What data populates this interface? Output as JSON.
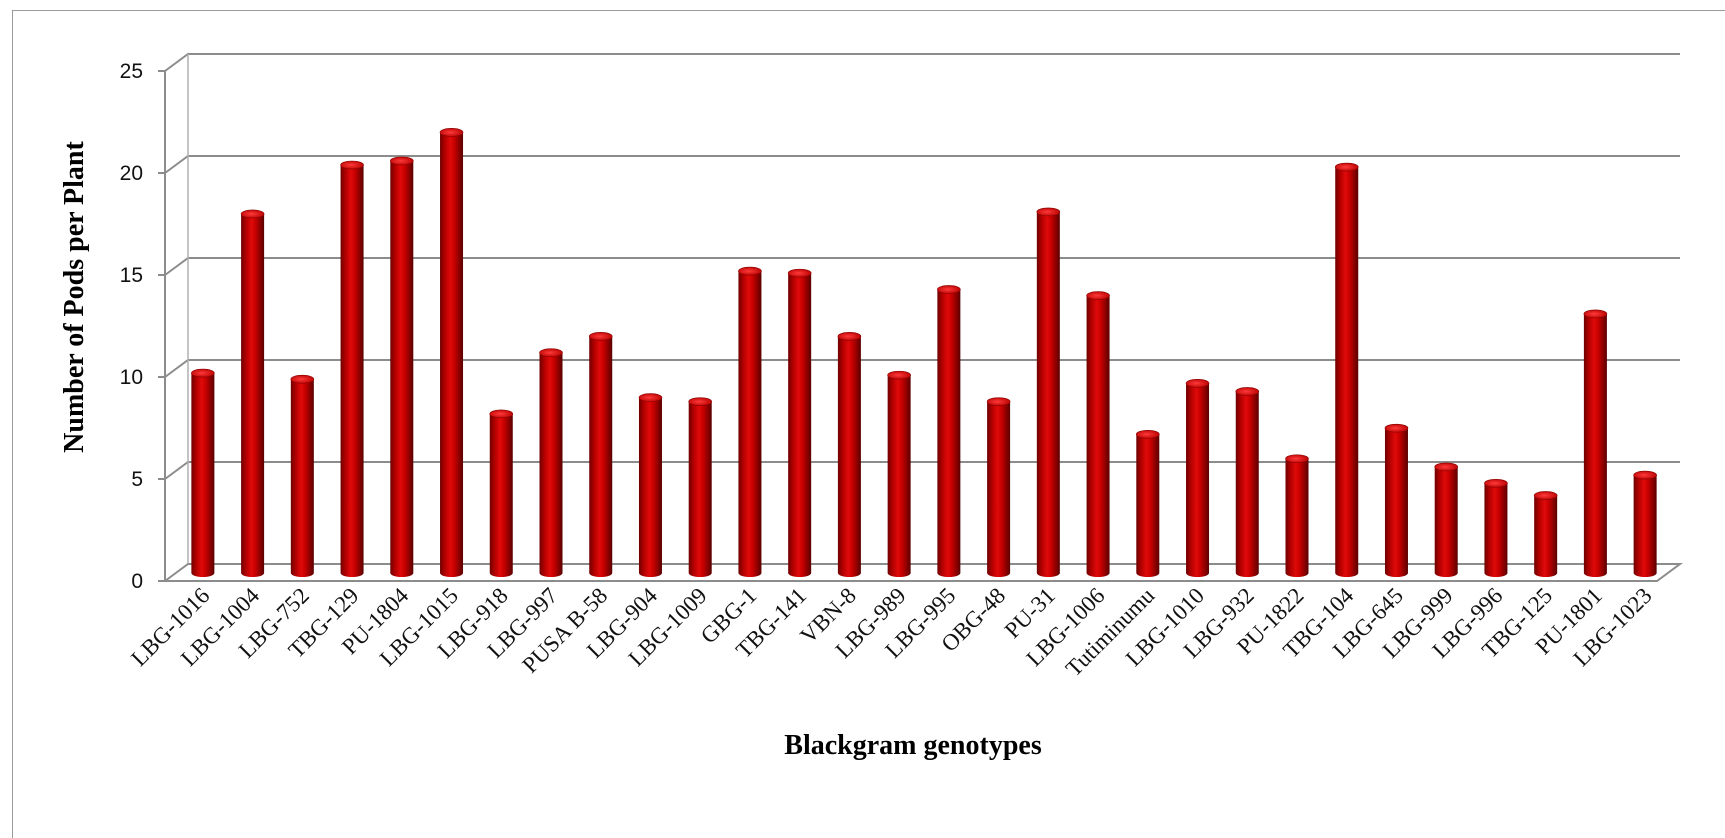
{
  "chart_data": {
    "type": "bar",
    "style": "3d-cylinder",
    "xlabel": "Blackgram genotypes",
    "ylabel": "Number of Pods per Plant",
    "ylim": [
      0,
      25
    ],
    "yticks": [
      0,
      5,
      10,
      15,
      20,
      25
    ],
    "grid": true,
    "legend": "none",
    "bar_color": "#c00000",
    "categories": [
      "LBG-1016",
      "LBG-1004",
      "LBG-752",
      "TBG-129",
      "PU-1804",
      "LBG-1015",
      "LBG-918",
      "LBG-997",
      "PUSA B-58",
      "LBG-904",
      "LBG-1009",
      "GBG-1",
      "TBG-141",
      "VBN-8",
      "LBG-989",
      "LBG-995",
      "OBG-48",
      "PU-31",
      "LBG-1006",
      "Tutiminumu",
      "LBG-1010",
      "LBG-932",
      "PU-1822",
      "TBG-104",
      "LBG-645",
      "LBG-999",
      "LBG-996",
      "TBG-125",
      "PU-1801",
      "LBG-1023"
    ],
    "values": [
      9.8,
      17.6,
      9.5,
      20.0,
      20.2,
      21.6,
      7.8,
      10.8,
      11.6,
      8.6,
      8.4,
      14.8,
      14.7,
      11.6,
      9.7,
      13.9,
      8.4,
      17.7,
      13.6,
      6.8,
      9.3,
      8.9,
      5.6,
      19.9,
      7.1,
      5.2,
      4.4,
      3.8,
      12.7,
      4.8
    ]
  }
}
